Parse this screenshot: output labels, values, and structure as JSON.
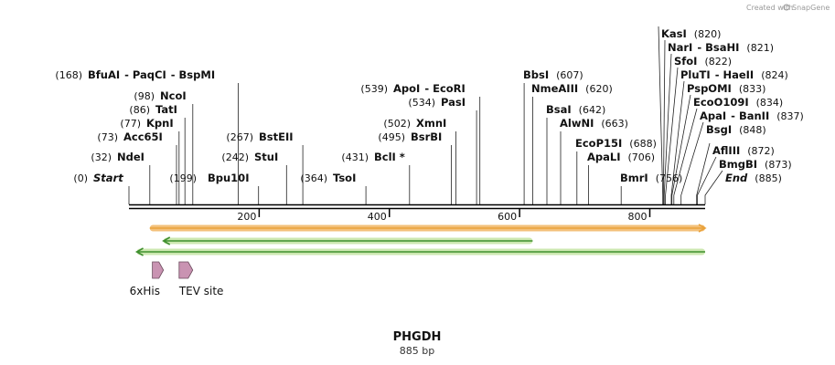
{
  "credit": {
    "text": "Created with",
    "brand": "SnapGene"
  },
  "sequence": {
    "name": "PHGDH",
    "length_label": "885 bp",
    "length": 885
  },
  "ruler": {
    "ticks": [
      {
        "value": 200,
        "label": "200"
      },
      {
        "value": 400,
        "label": "400"
      },
      {
        "value": 600,
        "label": "600"
      },
      {
        "value": 800,
        "label": "800"
      }
    ]
  },
  "sites": [
    {
      "name": "Start",
      "pos": "(0)",
      "kind": "start"
    },
    {
      "name": "NdeI",
      "pos": "(32)"
    },
    {
      "name": "Acc65I",
      "pos": "(73)"
    },
    {
      "name": "KpnI",
      "pos": "(77)"
    },
    {
      "name": "TatI",
      "pos": "(86)"
    },
    {
      "name": "NcoI",
      "pos": "(98)"
    },
    {
      "name": "BfuAI",
      "pos": "(168)",
      "alt": [
        "PaqCI",
        "BspMI"
      ]
    },
    {
      "name": "Bpu10I",
      "pos": "(199)"
    },
    {
      "name": "StuI",
      "pos": "(242)"
    },
    {
      "name": "BstEII",
      "pos": "(267)"
    },
    {
      "name": "TsoI",
      "pos": "(364)"
    },
    {
      "name": "BclI *",
      "pos": "(431)"
    },
    {
      "name": "BsrBI",
      "pos": "(495)"
    },
    {
      "name": "XmnI",
      "pos": "(502)"
    },
    {
      "name": "PasI",
      "pos": "(534)"
    },
    {
      "name": "ApoI",
      "pos": "(539)",
      "alt": [
        "EcoRI"
      ]
    },
    {
      "name": "BbsI",
      "pos": "(607)"
    },
    {
      "name": "NmeAIII",
      "pos": "(620)"
    },
    {
      "name": "BsaI",
      "pos": "(642)"
    },
    {
      "name": "AlwNI",
      "pos": "(663)"
    },
    {
      "name": "EcoP15I",
      "pos": "(688)"
    },
    {
      "name": "ApaLI",
      "pos": "(706)"
    },
    {
      "name": "BmrI",
      "pos": "(756)"
    },
    {
      "name": "KasI",
      "pos": "(820)"
    },
    {
      "name": "NarI",
      "pos": "(821)",
      "alt": [
        "BsaHI"
      ]
    },
    {
      "name": "SfoI",
      "pos": "(822)"
    },
    {
      "name": "PluTI",
      "pos": "(824)",
      "alt": [
        "HaeII"
      ]
    },
    {
      "name": "PspOMI",
      "pos": "(833)"
    },
    {
      "name": "EcoO109I",
      "pos": "(834)"
    },
    {
      "name": "ApaI",
      "pos": "(837)",
      "alt": [
        "BanII"
      ]
    },
    {
      "name": "BsgI",
      "pos": "(848)"
    },
    {
      "name": "AflIII",
      "pos": "(872)"
    },
    {
      "name": "BmgBI",
      "pos": "(873)"
    },
    {
      "name": "End",
      "pos": "(885)",
      "kind": "end"
    }
  ],
  "tracks": [
    {
      "name": "orf-forward",
      "start": 32,
      "end": 885,
      "direction": "forward",
      "color": "#f2b96b",
      "line": "#e9a23b"
    },
    {
      "name": "orf-reverse-short",
      "start": 53,
      "end": 620,
      "direction": "reverse",
      "color": "#c8e6a8",
      "line": "#3f8f2f"
    },
    {
      "name": "orf-reverse-full",
      "start": 12,
      "end": 885,
      "direction": "reverse",
      "color": "#c8e6a8",
      "line": "#3f8f2f"
    }
  ],
  "features": [
    {
      "name": "6xHis",
      "start": 36,
      "end": 53,
      "color": "#c993b2"
    },
    {
      "name": "TEV site",
      "start": 77,
      "end": 98,
      "color": "#c993b2"
    }
  ],
  "colors": {
    "backbone": "#000000",
    "feature": "#c993b2",
    "orange": "#f2b96b",
    "green": "#c8e6a8"
  }
}
